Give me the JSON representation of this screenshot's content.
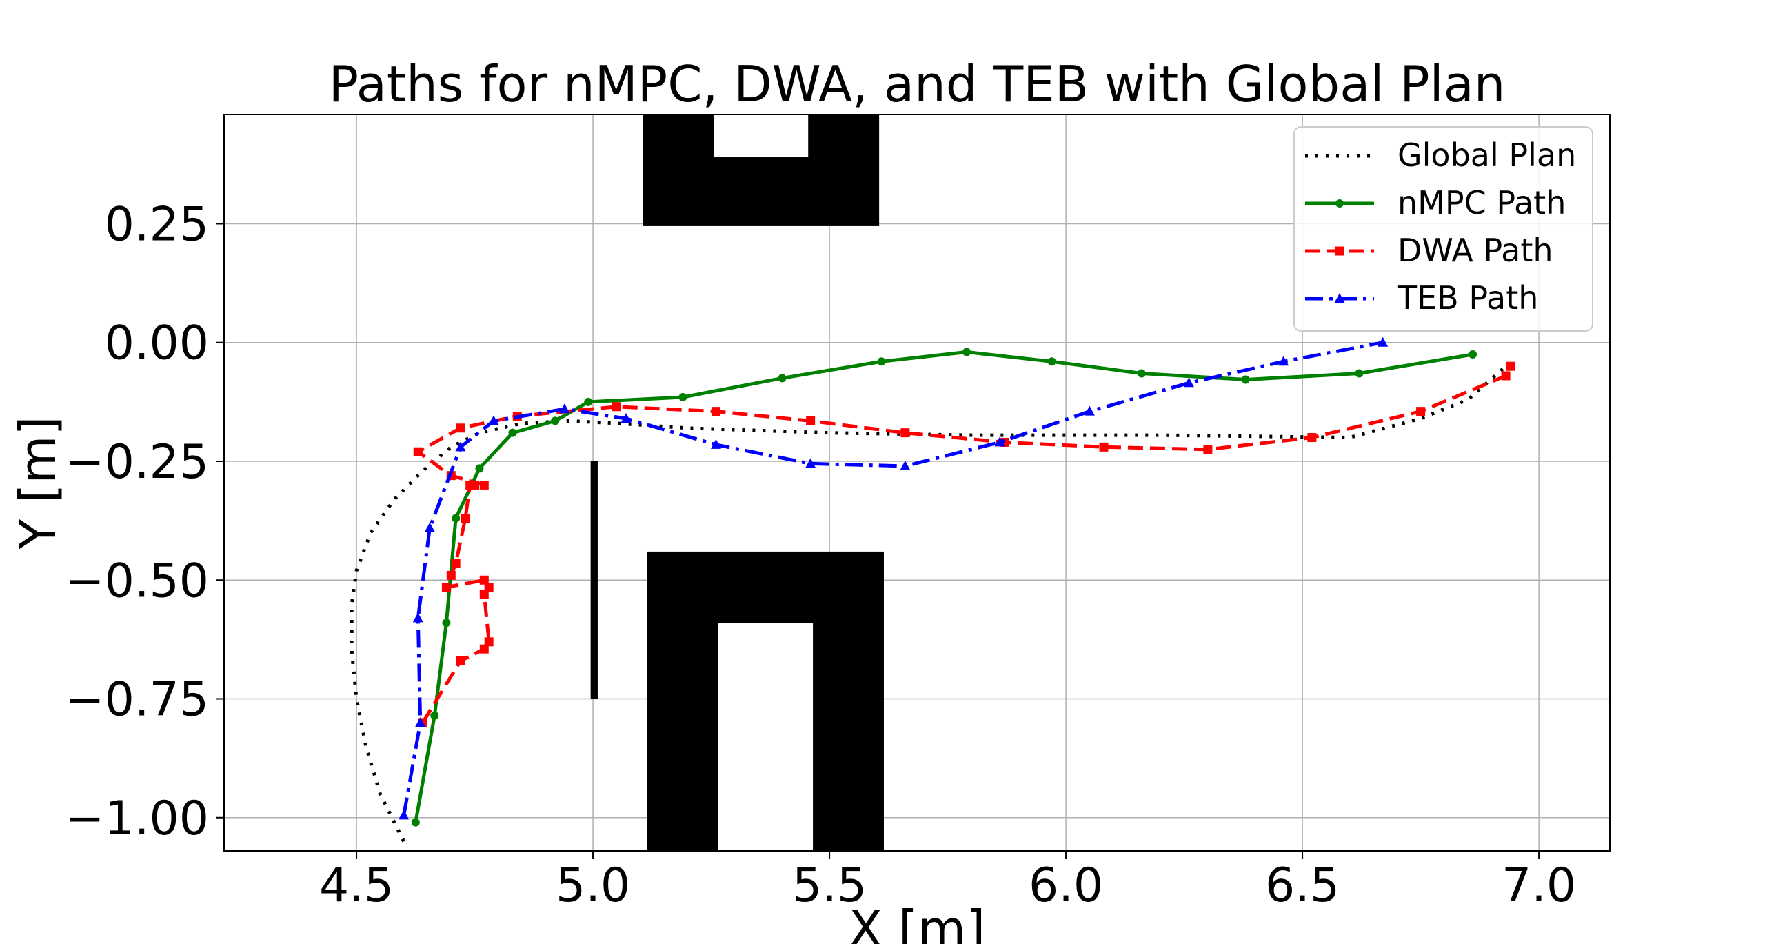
{
  "chart_data": {
    "type": "line",
    "title": "Paths for nMPC, DWA, and TEB with Global Plan",
    "xlabel": "X [m]",
    "ylabel": "Y [m]",
    "xlim": [
      4.22,
      7.15
    ],
    "ylim": [
      -1.07,
      0.48
    ],
    "x_ticks": [
      4.5,
      5.0,
      5.5,
      6.0,
      6.5,
      7.0
    ],
    "x_tick_labels": [
      "4.5",
      "5.0",
      "5.5",
      "6.0",
      "6.5",
      "7.0"
    ],
    "y_ticks": [
      0.25,
      0.0,
      -0.25,
      -0.5,
      -0.75,
      -1.0
    ],
    "y_tick_labels": [
      "0.25",
      "0.00",
      "−0.25",
      "−0.50",
      "−0.75",
      "−1.00"
    ],
    "grid": true,
    "legend_position": "top-right",
    "obstacles": [
      {
        "x0": 5.105,
        "x1": 5.605,
        "y0": 0.245,
        "y1": 0.48
      },
      {
        "x0": 5.115,
        "x1": 5.615,
        "y0": -1.07,
        "y1": -0.44
      },
      {
        "x0": 4.995,
        "x1": 5.01,
        "y0": -0.75,
        "y1": -0.25
      }
    ],
    "holes": [
      {
        "x0": 5.255,
        "x1": 5.455,
        "y0": 0.39,
        "y1": 0.48
      },
      {
        "x0": 5.265,
        "x1": 5.465,
        "y0": -1.07,
        "y1": -0.59
      }
    ],
    "series": [
      {
        "name": "Global Plan",
        "color": "#000000",
        "style": "dotted",
        "marker": "none",
        "x": [
          4.6,
          4.55,
          4.52,
          4.5,
          4.49,
          4.49,
          4.5,
          4.53,
          4.58,
          4.64,
          4.7,
          4.76,
          4.85,
          4.95,
          5.05,
          5.2,
          5.5,
          5.8,
          6.2,
          6.6,
          6.75,
          6.85,
          6.93
        ],
        "y": [
          -1.05,
          -0.95,
          -0.85,
          -0.75,
          -0.65,
          -0.55,
          -0.48,
          -0.4,
          -0.33,
          -0.27,
          -0.22,
          -0.19,
          -0.17,
          -0.165,
          -0.17,
          -0.18,
          -0.19,
          -0.195,
          -0.195,
          -0.2,
          -0.16,
          -0.12,
          -0.05
        ]
      },
      {
        "name": "nMPC Path",
        "color": "#008000",
        "style": "solid",
        "marker": "circle",
        "x": [
          4.625,
          4.665,
          4.69,
          4.71,
          4.76,
          4.83,
          4.92,
          4.99,
          5.19,
          5.4,
          5.61,
          5.79,
          5.97,
          6.16,
          6.38,
          6.62,
          6.86
        ],
        "y": [
          -1.01,
          -0.785,
          -0.59,
          -0.37,
          -0.265,
          -0.19,
          -0.165,
          -0.125,
          -0.115,
          -0.075,
          -0.04,
          -0.02,
          -0.04,
          -0.065,
          -0.078,
          -0.065,
          -0.025
        ]
      },
      {
        "name": "DWA Path",
        "color": "#ff0000",
        "style": "dashed",
        "marker": "square",
        "x": [
          4.64,
          4.72,
          4.77,
          4.78,
          4.77,
          4.78,
          4.77,
          4.69,
          4.7,
          4.71,
          4.73,
          4.74,
          4.75,
          4.77,
          4.7,
          4.63,
          4.72,
          4.84,
          5.05,
          5.26,
          5.46,
          5.66,
          5.87,
          6.08,
          6.3,
          6.52,
          6.75,
          6.93,
          6.94
        ],
        "y": [
          -0.8,
          -0.67,
          -0.645,
          -0.63,
          -0.53,
          -0.515,
          -0.5,
          -0.515,
          -0.49,
          -0.465,
          -0.37,
          -0.3,
          -0.3,
          -0.3,
          -0.28,
          -0.23,
          -0.18,
          -0.155,
          -0.135,
          -0.145,
          -0.165,
          -0.19,
          -0.21,
          -0.22,
          -0.225,
          -0.2,
          -0.145,
          -0.07,
          -0.05
        ]
      },
      {
        "name": "TEB Path",
        "color": "#0000ff",
        "style": "dashdot",
        "marker": "triangle",
        "x": [
          4.6,
          4.635,
          4.63,
          4.655,
          4.72,
          4.79,
          4.94,
          5.07,
          5.26,
          5.46,
          5.66,
          5.86,
          6.05,
          6.26,
          6.46,
          6.67
        ],
        "y": [
          -0.995,
          -0.8,
          -0.58,
          -0.39,
          -0.22,
          -0.165,
          -0.14,
          -0.16,
          -0.215,
          -0.255,
          -0.26,
          -0.21,
          -0.145,
          -0.085,
          -0.04,
          0.0
        ]
      }
    ]
  }
}
